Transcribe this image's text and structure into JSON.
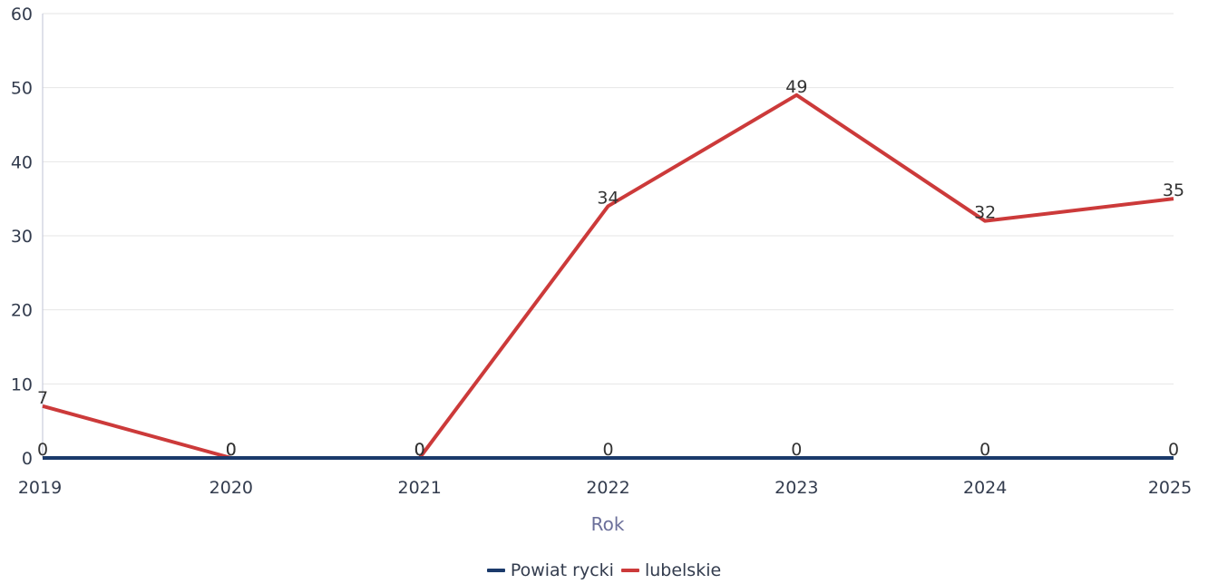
{
  "chart_data": {
    "type": "line",
    "x": [
      "2019",
      "2020",
      "2021",
      "2022",
      "2023",
      "2024",
      "2025"
    ],
    "xlabel": "Rok",
    "ylabel": "",
    "ylim": [
      0,
      60
    ],
    "yticks": [
      0,
      10,
      20,
      30,
      40,
      50,
      60
    ],
    "grid": true,
    "legend_position": "bottom-center",
    "series": [
      {
        "name": "Powiat rycki",
        "color": "#1b3a6b",
        "values": [
          0,
          0,
          0,
          0,
          0,
          0,
          0
        ]
      },
      {
        "name": "lubelskie",
        "color": "#cc3a3a",
        "values": [
          7,
          0,
          0,
          34,
          49,
          32,
          35
        ]
      }
    ]
  }
}
